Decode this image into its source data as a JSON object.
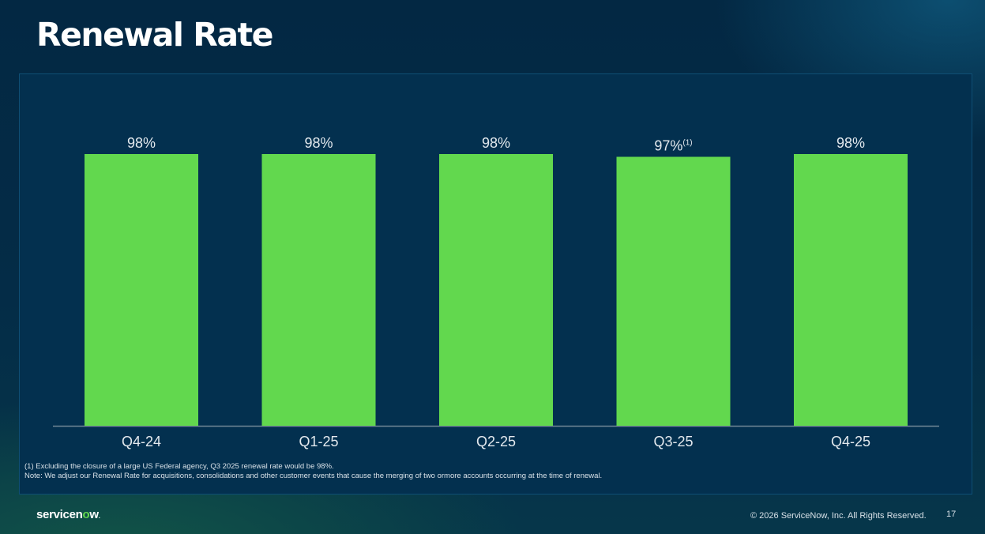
{
  "slide": {
    "title": "Renewal Rate",
    "footnotes": [
      "(1) Excluding the closure of a large US Federal agency, Q3 2025 renewal rate would be 98%.",
      "Note: We adjust our Renewal Rate for acquisitions, consolidations and other customer events that cause the merging of two ormore accounts occurring at the time of renewal."
    ],
    "logo": {
      "text_before": "servicen",
      "text_o": "o",
      "text_after": "w",
      "suffix": "."
    },
    "copyright": "© 2026 ServiceNow, Inc. All Rights Reserved.",
    "page_number": "17"
  },
  "colors": {
    "bar": "#62d84e",
    "label": "#e3e9ee",
    "axis": "#6f8595"
  },
  "chart_data": {
    "type": "bar",
    "title": "Renewal Rate",
    "xlabel": "",
    "ylabel": "",
    "ylim": [
      0,
      100
    ],
    "grid": false,
    "legend": "none",
    "categories": [
      "Q4-24",
      "Q1-25",
      "Q2-25",
      "Q3-25",
      "Q4-25"
    ],
    "values": [
      98,
      98,
      98,
      97,
      98
    ],
    "data_labels": [
      "98%",
      "98%",
      "98%",
      "97%",
      "98%"
    ],
    "data_label_superscripts": [
      "",
      "",
      "",
      "(1)",
      ""
    ]
  }
}
